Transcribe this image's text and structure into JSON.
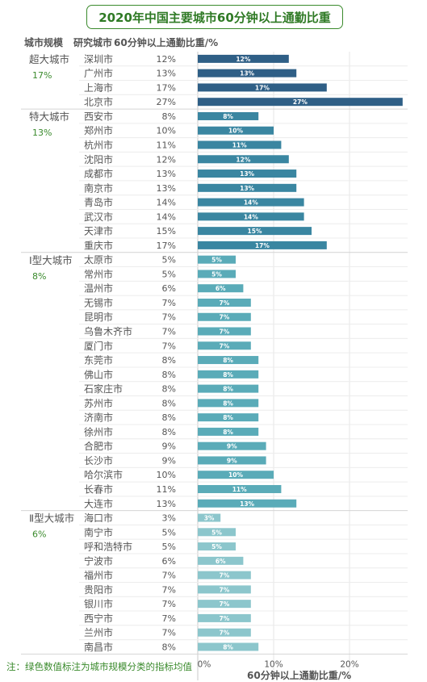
{
  "title": "2020年中国主要城市60分钟以上通勤比重",
  "headers": {
    "scale": "城市规模",
    "city": "研究城市",
    "share": "60分钟以上通勤比重/%"
  },
  "note": "注：绿色数值标注为城市规模分类的指标均值",
  "chart_data": {
    "type": "bar",
    "orientation": "horizontal",
    "xlabel": "60分钟以上通勤比重/%",
    "xlim": [
      0,
      27
    ],
    "xticks": [
      "0%",
      "10%",
      "20%"
    ],
    "groups": [
      {
        "name": "超大城市",
        "mean": "17%",
        "color": "#2f5f86",
        "cities": [
          {
            "city": "深圳市",
            "value": 12,
            "label": "12%"
          },
          {
            "city": "广州市",
            "value": 13,
            "label": "13%"
          },
          {
            "city": "上海市",
            "value": 17,
            "label": "17%"
          },
          {
            "city": "北京市",
            "value": 27,
            "label": "27%"
          }
        ]
      },
      {
        "name": "特大城市",
        "mean": "13%",
        "color": "#3a86a1",
        "cities": [
          {
            "city": "西安市",
            "value": 8,
            "label": "8%"
          },
          {
            "city": "郑州市",
            "value": 10,
            "label": "10%"
          },
          {
            "city": "杭州市",
            "value": 11,
            "label": "11%"
          },
          {
            "city": "沈阳市",
            "value": 12,
            "label": "12%"
          },
          {
            "city": "成都市",
            "value": 13,
            "label": "13%"
          },
          {
            "city": "南京市",
            "value": 13,
            "label": "13%"
          },
          {
            "city": "青岛市",
            "value": 14,
            "label": "14%"
          },
          {
            "city": "武汉市",
            "value": 14,
            "label": "14%"
          },
          {
            "city": "天津市",
            "value": 15,
            "label": "15%"
          },
          {
            "city": "重庆市",
            "value": 17,
            "label": "17%"
          }
        ]
      },
      {
        "name": "Ⅰ型大城市",
        "mean": "8%",
        "color": "#5aabb8",
        "cities": [
          {
            "city": "太原市",
            "value": 5,
            "label": "5%"
          },
          {
            "city": "常州市",
            "value": 5,
            "label": "5%"
          },
          {
            "city": "温州市",
            "value": 6,
            "label": "6%"
          },
          {
            "city": "无锡市",
            "value": 7,
            "label": "7%"
          },
          {
            "city": "昆明市",
            "value": 7,
            "label": "7%"
          },
          {
            "city": "乌鲁木齐市",
            "value": 7,
            "label": "7%"
          },
          {
            "city": "厦门市",
            "value": 7,
            "label": "7%"
          },
          {
            "city": "东莞市",
            "value": 8,
            "label": "8%"
          },
          {
            "city": "佛山市",
            "value": 8,
            "label": "8%"
          },
          {
            "city": "石家庄市",
            "value": 8,
            "label": "8%"
          },
          {
            "city": "苏州市",
            "value": 8,
            "label": "8%"
          },
          {
            "city": "济南市",
            "value": 8,
            "label": "8%"
          },
          {
            "city": "徐州市",
            "value": 8,
            "label": "8%"
          },
          {
            "city": "合肥市",
            "value": 9,
            "label": "9%"
          },
          {
            "city": "长沙市",
            "value": 9,
            "label": "9%"
          },
          {
            "city": "哈尔滨市",
            "value": 10,
            "label": "10%"
          },
          {
            "city": "长春市",
            "value": 11,
            "label": "11%"
          },
          {
            "city": "大连市",
            "value": 13,
            "label": "13%"
          }
        ]
      },
      {
        "name": "Ⅱ型大城市",
        "mean": "6%",
        "color": "#8cc6cc",
        "cities": [
          {
            "city": "海口市",
            "value": 3,
            "label": "3%"
          },
          {
            "city": "南宁市",
            "value": 5,
            "label": "5%"
          },
          {
            "city": "呼和浩特市",
            "value": 5,
            "label": "5%"
          },
          {
            "city": "宁波市",
            "value": 6,
            "label": "6%"
          },
          {
            "city": "福州市",
            "value": 7,
            "label": "7%"
          },
          {
            "city": "贵阳市",
            "value": 7,
            "label": "7%"
          },
          {
            "city": "银川市",
            "value": 7,
            "label": "7%"
          },
          {
            "city": "西宁市",
            "value": 7,
            "label": "7%"
          },
          {
            "city": "兰州市",
            "value": 7,
            "label": "7%"
          },
          {
            "city": "南昌市",
            "value": 8,
            "label": "8%"
          }
        ]
      }
    ]
  }
}
